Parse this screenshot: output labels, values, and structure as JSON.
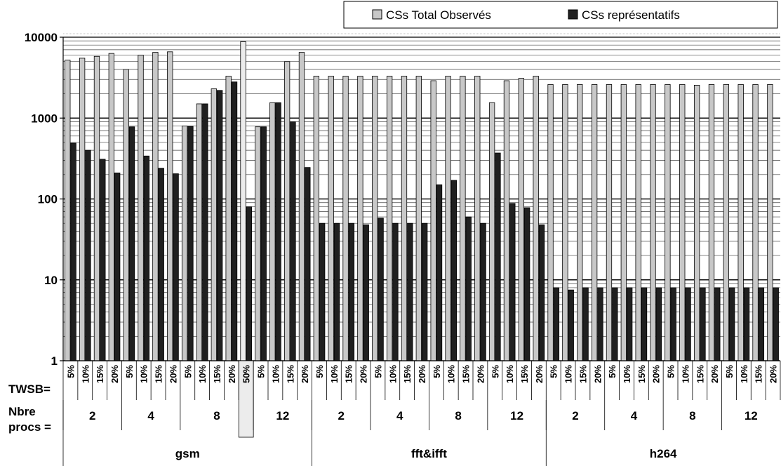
{
  "chart_data": {
    "type": "bar",
    "scale": "log",
    "ylim": [
      1,
      10000
    ],
    "y_ticks": [
      "1",
      "10",
      "100",
      "1000",
      "10000"
    ],
    "grid": true,
    "legend_position": "top-right",
    "row_labels": {
      "twsb": "TWSB=",
      "procs": "Nbre procs ="
    },
    "colors": {
      "total": "#c8c8c8",
      "representatifs": "#202020",
      "highlight": "#ececec"
    },
    "series": [
      {
        "name": "CSs Total Observés",
        "key": "total"
      },
      {
        "name": "CSs représentatifs",
        "key": "representatifs"
      }
    ],
    "groups": [
      {
        "name": "gsm",
        "procs": [
          {
            "label": "2",
            "bars": [
              {
                "twsb": "5%",
                "total": 5200,
                "representatifs": 490
              },
              {
                "twsb": "10%",
                "total": 5500,
                "representatifs": 400
              },
              {
                "twsb": "15%",
                "total": 5800,
                "representatifs": 310
              },
              {
                "twsb": "20%",
                "total": 6300,
                "representatifs": 210
              }
            ]
          },
          {
            "label": "4",
            "bars": [
              {
                "twsb": "5%",
                "total": 4000,
                "representatifs": 780
              },
              {
                "twsb": "10%",
                "total": 6000,
                "representatifs": 340
              },
              {
                "twsb": "15%",
                "total": 6500,
                "representatifs": 240
              },
              {
                "twsb": "20%",
                "total": 6600,
                "representatifs": 205
              }
            ]
          },
          {
            "label": "8",
            "bars": [
              {
                "twsb": "5%",
                "total": 800,
                "representatifs": 790
              },
              {
                "twsb": "10%",
                "total": 1500,
                "representatifs": 1500
              },
              {
                "twsb": "15%",
                "total": 2300,
                "representatifs": 2200
              },
              {
                "twsb": "20%",
                "total": 3300,
                "representatifs": 2800
              },
              {
                "twsb": "50%",
                "total": 8800,
                "representatifs": 80,
                "highlight": true
              }
            ]
          },
          {
            "label": "12",
            "bars": [
              {
                "twsb": "5%",
                "total": 780,
                "representatifs": 780
              },
              {
                "twsb": "10%",
                "total": 1550,
                "representatifs": 1550
              },
              {
                "twsb": "15%",
                "total": 5000,
                "representatifs": 900
              },
              {
                "twsb": "20%",
                "total": 6500,
                "representatifs": 245
              }
            ]
          }
        ]
      },
      {
        "name": "fft&ifft",
        "procs": [
          {
            "label": "2",
            "bars": [
              {
                "twsb": "5%",
                "total": 3300,
                "representatifs": 50
              },
              {
                "twsb": "10%",
                "total": 3300,
                "representatifs": 50
              },
              {
                "twsb": "15%",
                "total": 3300,
                "representatifs": 50
              },
              {
                "twsb": "20%",
                "total": 3300,
                "representatifs": 48
              }
            ]
          },
          {
            "label": "4",
            "bars": [
              {
                "twsb": "5%",
                "total": 3300,
                "representatifs": 58
              },
              {
                "twsb": "10%",
                "total": 3300,
                "representatifs": 50
              },
              {
                "twsb": "15%",
                "total": 3300,
                "representatifs": 50
              },
              {
                "twsb": "20%",
                "total": 3300,
                "representatifs": 50
              }
            ]
          },
          {
            "label": "8",
            "bars": [
              {
                "twsb": "5%",
                "total": 2900,
                "representatifs": 150
              },
              {
                "twsb": "10%",
                "total": 3300,
                "representatifs": 170
              },
              {
                "twsb": "15%",
                "total": 3300,
                "representatifs": 60
              },
              {
                "twsb": "20%",
                "total": 3300,
                "representatifs": 50
              }
            ]
          },
          {
            "label": "12",
            "bars": [
              {
                "twsb": "5%",
                "total": 1550,
                "representatifs": 370
              },
              {
                "twsb": "10%",
                "total": 2900,
                "representatifs": 88
              },
              {
                "twsb": "15%",
                "total": 3100,
                "representatifs": 78
              },
              {
                "twsb": "20%",
                "total": 3300,
                "representatifs": 48
              }
            ]
          }
        ]
      },
      {
        "name": "h264",
        "procs": [
          {
            "label": "2",
            "bars": [
              {
                "twsb": "5%",
                "total": 2600,
                "representatifs": 8
              },
              {
                "twsb": "10%",
                "total": 2600,
                "representatifs": 7.5
              },
              {
                "twsb": "15%",
                "total": 2600,
                "representatifs": 8
              },
              {
                "twsb": "20%",
                "total": 2600,
                "representatifs": 8
              }
            ]
          },
          {
            "label": "4",
            "bars": [
              {
                "twsb": "5%",
                "total": 2600,
                "representatifs": 8
              },
              {
                "twsb": "10%",
                "total": 2600,
                "representatifs": 8
              },
              {
                "twsb": "15%",
                "total": 2600,
                "representatifs": 8
              },
              {
                "twsb": "20%",
                "total": 2600,
                "representatifs": 8
              }
            ]
          },
          {
            "label": "8",
            "bars": [
              {
                "twsb": "5%",
                "total": 2600,
                "representatifs": 8
              },
              {
                "twsb": "10%",
                "total": 2600,
                "representatifs": 8
              },
              {
                "twsb": "15%",
                "total": 2550,
                "representatifs": 8
              },
              {
                "twsb": "20%",
                "total": 2600,
                "representatifs": 8
              }
            ]
          },
          {
            "label": "12",
            "bars": [
              {
                "twsb": "5%",
                "total": 2600,
                "representatifs": 8
              },
              {
                "twsb": "10%",
                "total": 2600,
                "representatifs": 8
              },
              {
                "twsb": "15%",
                "total": 2600,
                "representatifs": 8
              },
              {
                "twsb": "20%",
                "total": 2600,
                "representatifs": 8
              }
            ]
          }
        ]
      }
    ]
  }
}
